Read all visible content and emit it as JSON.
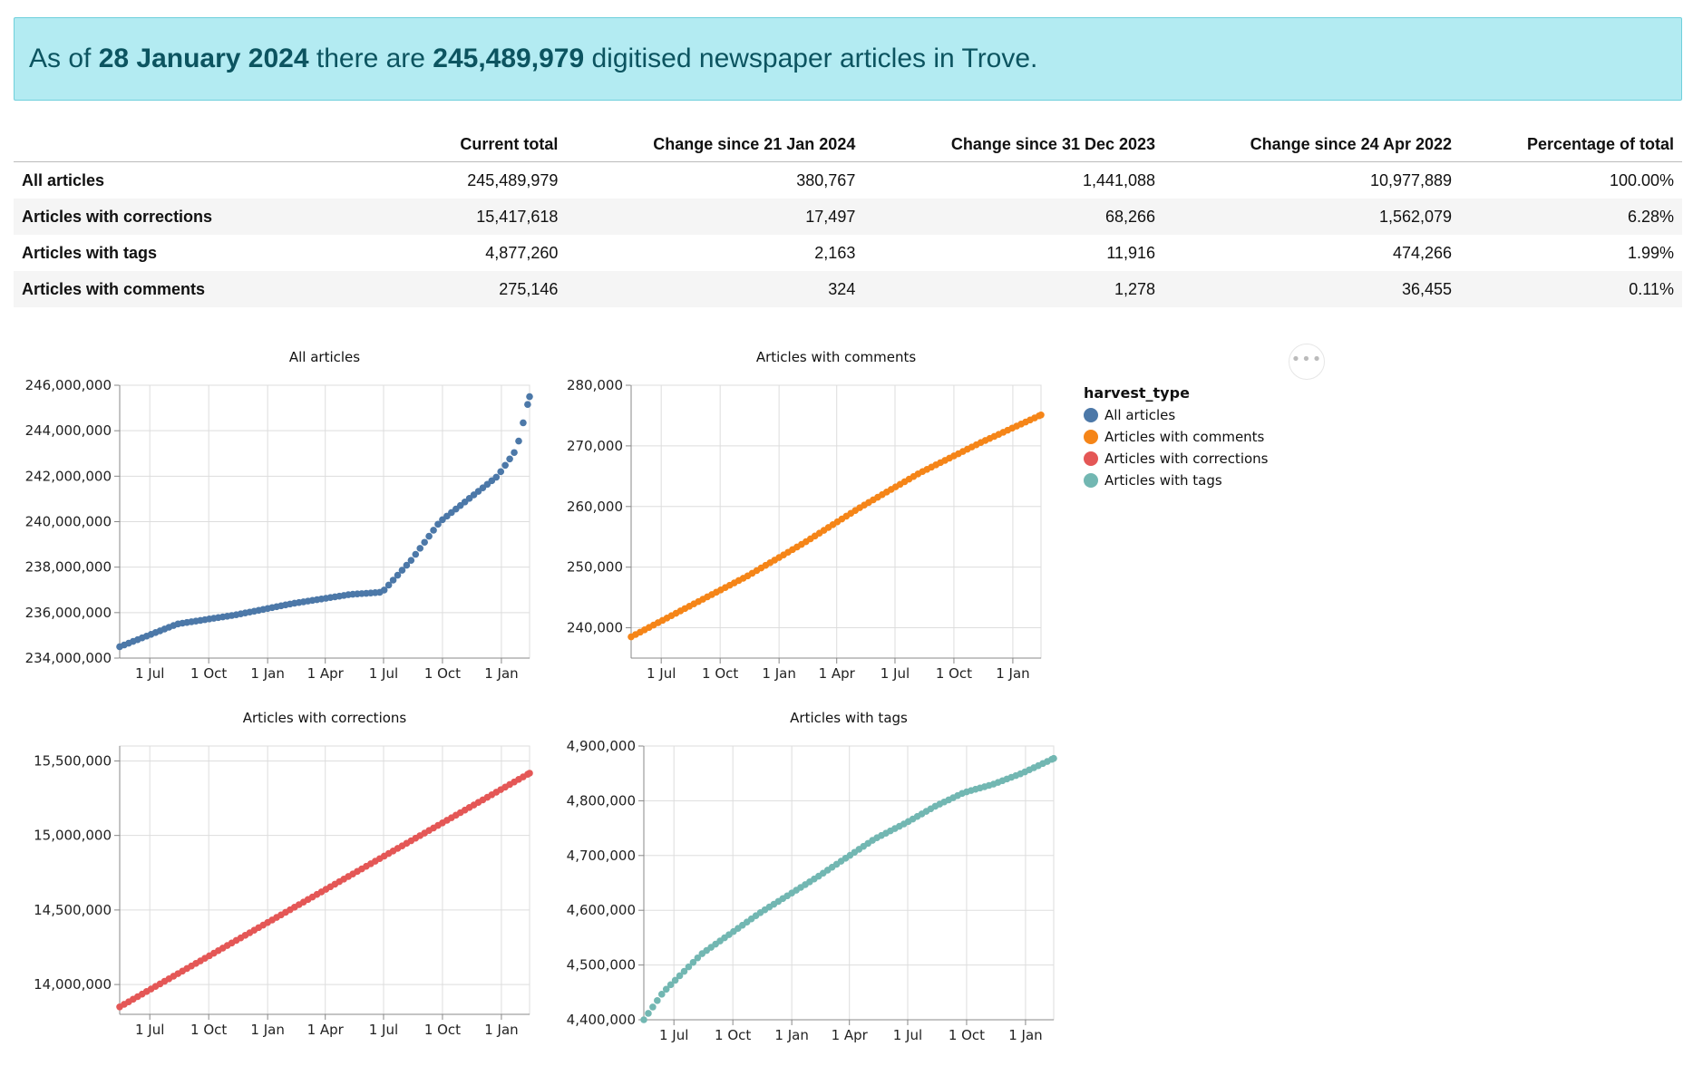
{
  "banner": {
    "prefix": "As of ",
    "date": "28 January 2024",
    "middle": " there are ",
    "count": "245,489,979",
    "suffix": " digitised newspaper articles in Trove."
  },
  "table": {
    "headers": [
      "",
      "Current total",
      "Change since 21 Jan 2024",
      "Change since 31 Dec 2023",
      "Change since 24 Apr 2022",
      "Percentage of total"
    ],
    "rows": [
      [
        "All articles",
        "245,489,979",
        "380,767",
        "1,441,088",
        "10,977,889",
        "100.00%"
      ],
      [
        "Articles with corrections",
        "15,417,618",
        "17,497",
        "68,266",
        "1,562,079",
        "6.28%"
      ],
      [
        "Articles with tags",
        "4,877,260",
        "2,163",
        "11,916",
        "474,266",
        "1.99%"
      ],
      [
        "Articles with comments",
        "275,146",
        "324",
        "1,278",
        "36,455",
        "0.11%"
      ]
    ]
  },
  "menu": {
    "glyph": "•••"
  },
  "legend": {
    "title": "harvest_type",
    "items": [
      {
        "label": "All articles",
        "color": "#4c78a8"
      },
      {
        "label": "Articles with comments",
        "color": "#f58518"
      },
      {
        "label": "Articles with corrections",
        "color": "#e45756"
      },
      {
        "label": "Articles with tags",
        "color": "#72b7b2"
      }
    ]
  },
  "chart_data": [
    {
      "type": "scatter",
      "title": "All articles",
      "color": "#4c78a8",
      "x_ticks": [
        "1 Jul",
        "1 Oct",
        "1 Jan",
        "1 Apr",
        "1 Jul",
        "1 Oct",
        "1 Jan"
      ],
      "x_range_days": [
        0,
        640
      ],
      "ylim": [
        234000000,
        246000000
      ],
      "y_ticks": [
        234000000,
        236000000,
        238000000,
        240000000,
        242000000,
        244000000,
        246000000
      ],
      "x": [
        0,
        90,
        181,
        270,
        360,
        410,
        455,
        500,
        545,
        590,
        620,
        640
      ],
      "y": [
        234500000,
        235500000,
        235900000,
        236400000,
        236800000,
        236900000,
        238300000,
        240000000,
        241000000,
        242000000,
        243200000,
        245500000
      ]
    },
    {
      "type": "scatter",
      "title": "Articles with comments",
      "color": "#f58518",
      "x_ticks": [
        "1 Jul",
        "1 Oct",
        "1 Jan",
        "1 Apr",
        "1 Jul",
        "1 Oct",
        "1 Jan"
      ],
      "x_range_days": [
        0,
        640
      ],
      "ylim": [
        235000,
        280000
      ],
      "y_ticks": [
        240000,
        250000,
        260000,
        270000,
        280000
      ],
      "x": [
        0,
        90,
        181,
        270,
        360,
        450,
        545,
        640
      ],
      "y": [
        238500,
        243500,
        248500,
        254000,
        260000,
        265500,
        270500,
        275100
      ]
    },
    {
      "type": "scatter",
      "title": "Articles with corrections",
      "color": "#e45756",
      "x_ticks": [
        "1 Jul",
        "1 Oct",
        "1 Jan",
        "1 Apr",
        "1 Jul",
        "1 Oct",
        "1 Jan"
      ],
      "x_range_days": [
        0,
        640
      ],
      "ylim": [
        13800000,
        15600000
      ],
      "y_ticks": [
        14000000,
        14500000,
        15000000,
        15500000
      ],
      "x": [
        0,
        640
      ],
      "y": [
        13850000,
        15417618
      ]
    },
    {
      "type": "scatter",
      "title": "Articles with tags",
      "color": "#72b7b2",
      "x_ticks": [
        "1 Jul",
        "1 Oct",
        "1 Jan",
        "1 Apr",
        "1 Jul",
        "1 Oct",
        "1 Jan"
      ],
      "x_range_days": [
        0,
        640
      ],
      "ylim": [
        4400000,
        4900000
      ],
      "y_ticks": [
        4400000,
        4500000,
        4600000,
        4700000,
        4800000,
        4900000
      ],
      "x": [
        0,
        30,
        90,
        181,
        270,
        360,
        410,
        455,
        500,
        545,
        590,
        640
      ],
      "y": [
        4400000,
        4450000,
        4520000,
        4595000,
        4660000,
        4730000,
        4760000,
        4790000,
        4815000,
        4830000,
        4850000,
        4877260
      ]
    }
  ]
}
